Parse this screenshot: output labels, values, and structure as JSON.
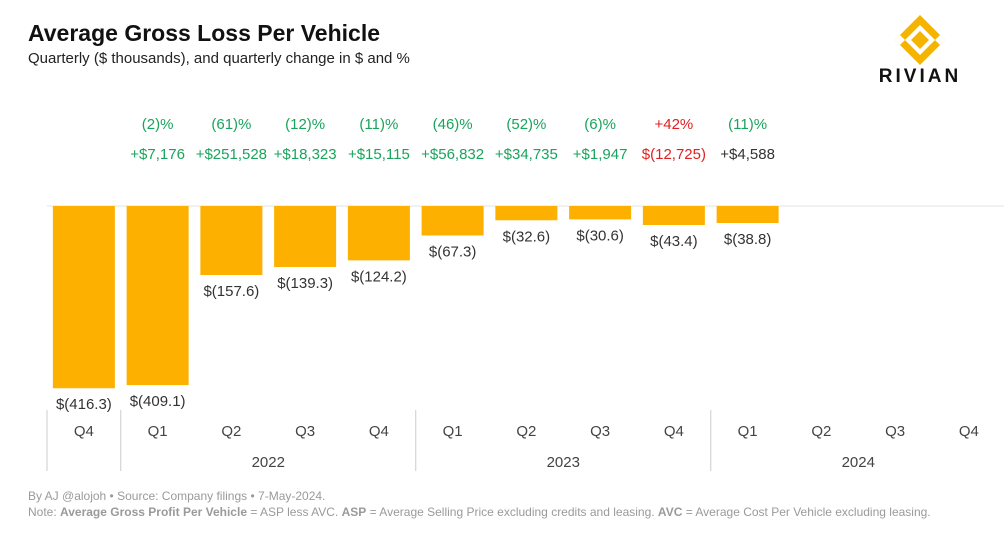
{
  "header": {
    "title": "Average Gross Loss Per Vehicle",
    "subtitle": "Quarterly ($ thousands),  and quarterly change in $ and %"
  },
  "logo": {
    "text": "RIVIAN",
    "icon": "rivian-diamond-logo",
    "color": "#F5B400"
  },
  "colors": {
    "bar": "#FDB000",
    "positive": "#1AA35C",
    "negative": "#E02020",
    "neutral": "#333333",
    "axis": "#cccccc"
  },
  "chart_data": {
    "type": "bar",
    "categories": [
      "Q4",
      "Q1",
      "Q2",
      "Q3",
      "Q4",
      "Q1",
      "Q2",
      "Q3",
      "Q4",
      "Q1",
      "Q2",
      "Q3",
      "Q4"
    ],
    "years": [
      {
        "label": "2022",
        "start": 1,
        "end": 4
      },
      {
        "label": "2023",
        "start": 5,
        "end": 8
      },
      {
        "label": "2024",
        "start": 9,
        "end": 12
      }
    ],
    "values": [
      -416.3,
      -409.1,
      -157.6,
      -139.3,
      -124.2,
      -67.3,
      -32.6,
      -30.6,
      -43.4,
      -38.8,
      null,
      null,
      null
    ],
    "value_labels": [
      "$(416.3)",
      "$(409.1)",
      "$(157.6)",
      "$(139.3)",
      "$(124.2)",
      "$(67.3)",
      "$(32.6)",
      "$(30.6)",
      "$(43.4)",
      "$(38.8)",
      "",
      "",
      ""
    ],
    "pct_change": [
      "",
      "(2)%",
      "(61)%",
      "(12)%",
      "(11)%",
      "(46)%",
      "(52)%",
      "(6)%",
      "+42%",
      "(11)%",
      "",
      "",
      ""
    ],
    "dollar_change": [
      "",
      "+$7,176",
      "+$251,528",
      "+$18,323",
      "+$15,115",
      "+$56,832",
      "+$34,735",
      "+$1,947",
      "$(12,725)",
      "+$4,588",
      "",
      "",
      ""
    ],
    "pct_change_status": [
      "",
      "good",
      "good",
      "good",
      "good",
      "good",
      "good",
      "good",
      "bad",
      "good",
      "",
      "",
      ""
    ],
    "dollar_change_status": [
      "",
      "good",
      "good",
      "good",
      "good",
      "good",
      "good",
      "good",
      "bad",
      "neutral",
      "",
      "",
      ""
    ],
    "ylim": [
      -450,
      0
    ]
  },
  "footer": {
    "line1": "By AJ @alojoh • Source: Company filings • 7-May-2024.",
    "note_prefix": "Note: ",
    "term1": "Average Gross Profit Per Vehicle",
    "def1": " = ASP less AVC. ",
    "term2": "ASP",
    "def2": " = Average Selling Price excluding credits and leasing. ",
    "term3": "AVC",
    "def3": " = Average Cost Per Vehicle excluding leasing."
  }
}
